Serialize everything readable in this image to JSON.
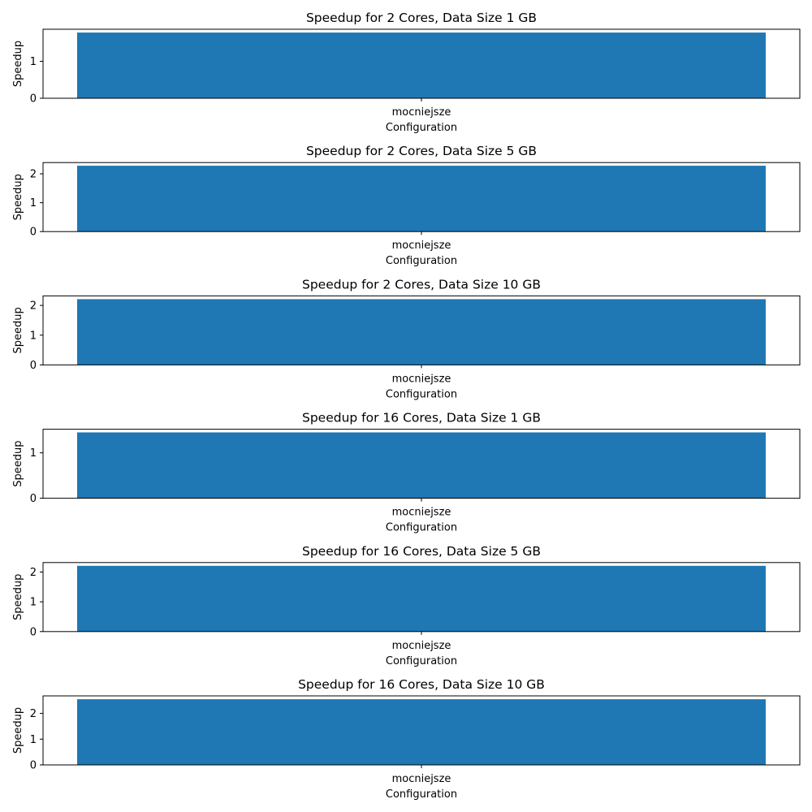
{
  "chart_data": [
    {
      "type": "bar",
      "title": "Speedup for 2 Cores, Data Size 1 GB",
      "xlabel": "Configuration",
      "ylabel": "Speedup",
      "categories": [
        "mocniejsze"
      ],
      "values": [
        1.78
      ],
      "ylim": [
        0,
        1.87
      ],
      "yticks": [
        0,
        1
      ],
      "color": "#1f77b4"
    },
    {
      "type": "bar",
      "title": "Speedup for 2 Cores, Data Size 5 GB",
      "xlabel": "Configuration",
      "ylabel": "Speedup",
      "categories": [
        "mocniejsze"
      ],
      "values": [
        2.28
      ],
      "ylim": [
        0,
        2.39
      ],
      "yticks": [
        0,
        1,
        2
      ],
      "color": "#1f77b4"
    },
    {
      "type": "bar",
      "title": "Speedup for 2 Cores, Data Size 10 GB",
      "xlabel": "Configuration",
      "ylabel": "Speedup",
      "categories": [
        "mocniejsze"
      ],
      "values": [
        2.21
      ],
      "ylim": [
        0,
        2.32
      ],
      "yticks": [
        0,
        1,
        2
      ],
      "color": "#1f77b4"
    },
    {
      "type": "bar",
      "title": "Speedup for 16 Cores, Data Size 1 GB",
      "xlabel": "Configuration",
      "ylabel": "Speedup",
      "categories": [
        "mocniejsze"
      ],
      "values": [
        1.45
      ],
      "ylim": [
        0,
        1.52
      ],
      "yticks": [
        0,
        1
      ],
      "color": "#1f77b4"
    },
    {
      "type": "bar",
      "title": "Speedup for 16 Cores, Data Size 5 GB",
      "xlabel": "Configuration",
      "ylabel": "Speedup",
      "categories": [
        "mocniejsze"
      ],
      "values": [
        2.21
      ],
      "ylim": [
        0,
        2.32
      ],
      "yticks": [
        0,
        1,
        2
      ],
      "color": "#1f77b4"
    },
    {
      "type": "bar",
      "title": "Speedup for 16 Cores, Data Size 10 GB",
      "xlabel": "Configuration",
      "ylabel": "Speedup",
      "categories": [
        "mocniejsze"
      ],
      "values": [
        2.55
      ],
      "ylim": [
        0,
        2.68
      ],
      "yticks": [
        0,
        1,
        2
      ],
      "color": "#1f77b4"
    }
  ]
}
